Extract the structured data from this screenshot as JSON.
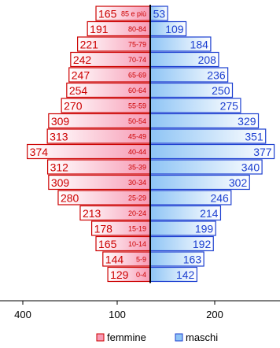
{
  "chart_data": {
    "type": "bar",
    "orientation": "horizontal",
    "layout": "population-pyramid",
    "categories": [
      "85 e più",
      "80-84",
      "75-79",
      "70-74",
      "65-69",
      "60-64",
      "55-59",
      "50-54",
      "45-49",
      "40-44",
      "35-39",
      "30-34",
      "25-29",
      "20-24",
      "15-19",
      "10-14",
      "5-9",
      "0-4"
    ],
    "series": [
      {
        "name": "femmine",
        "side": "left",
        "color": "#cc0000",
        "values": [
          165,
          191,
          221,
          242,
          247,
          254,
          270,
          309,
          313,
          374,
          312,
          309,
          280,
          213,
          178,
          165,
          144,
          129
        ]
      },
      {
        "name": "maschi",
        "side": "right",
        "color": "#1c3fd0",
        "values": [
          53,
          109,
          184,
          208,
          236,
          250,
          275,
          329,
          351,
          377,
          340,
          302,
          246,
          214,
          199,
          192,
          163,
          142
        ]
      }
    ],
    "xticks": [
      "400",
      "100",
      "200"
    ],
    "legend_position": "bottom",
    "grid": false
  }
}
